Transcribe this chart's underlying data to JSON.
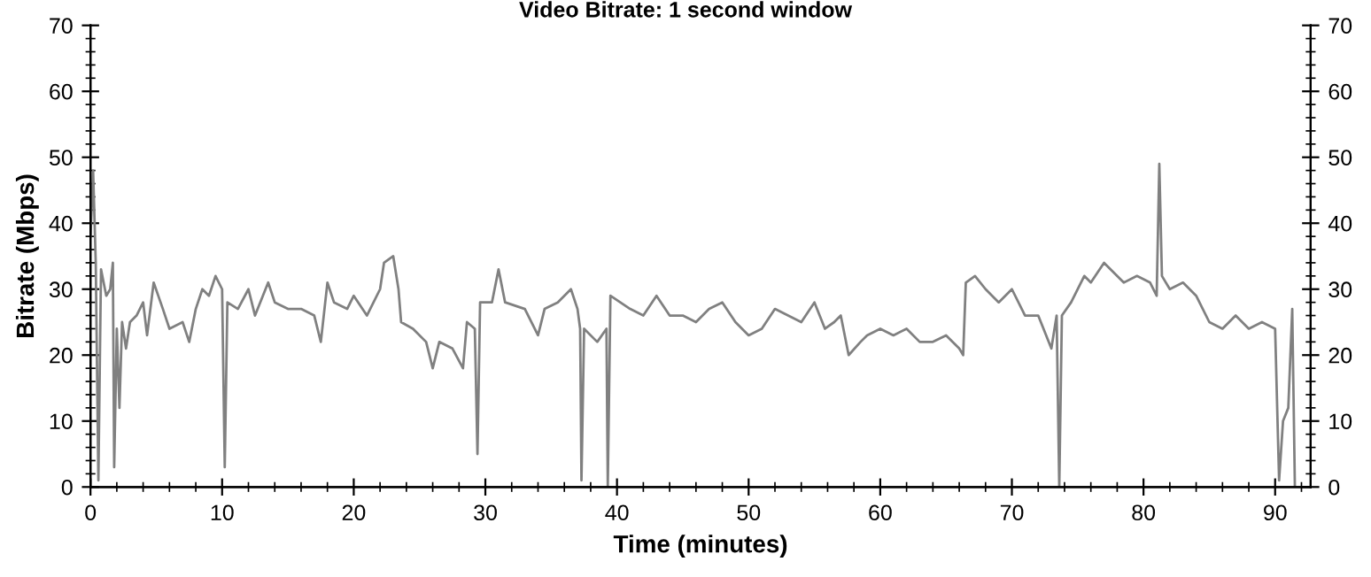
{
  "chart_data": {
    "type": "line",
    "title": "Video Bitrate: 1 second window",
    "xlabel": "Time (minutes)",
    "ylabel": "Bitrate (Mbps)",
    "xlim": [
      0,
      92.7
    ],
    "xticks": [
      0,
      10,
      20,
      30,
      40,
      50,
      60,
      70,
      80,
      90
    ],
    "ylim": [
      0,
      70
    ],
    "yticks": [
      0,
      10,
      20,
      30,
      40,
      50,
      60,
      70
    ],
    "y2lim": [
      0,
      70
    ],
    "y2ticks": [
      0,
      10,
      20,
      30,
      40,
      50,
      60,
      70
    ],
    "grid": false,
    "marker": "none",
    "line_style": "solid",
    "series": [
      {
        "color": "#808080",
        "x": [
          0,
          0.2,
          0.4,
          0.6,
          0.8,
          1.2,
          1.5,
          1.7,
          1.8,
          2.0,
          2.2,
          2.4,
          2.7,
          3.0,
          3.5,
          4.0,
          4.3,
          4.8,
          5.5,
          6.0,
          7.0,
          7.5,
          8.0,
          8.5,
          9.0,
          9.5,
          10.0,
          10.2,
          10.4,
          11.2,
          12,
          12.5,
          13.5,
          14,
          15,
          16,
          17,
          17.5,
          18,
          18.5,
          19.5,
          20,
          21,
          22,
          22.3,
          23,
          23.4,
          23.6,
          24.5,
          25.5,
          26,
          26.5,
          27.5,
          28.3,
          28.6,
          29.2,
          29.4,
          29.6,
          30.5,
          31,
          31.5,
          33,
          34,
          34.5,
          35.5,
          36.5,
          37,
          37.2,
          37.3,
          37.5,
          38.5,
          39.2,
          39.3,
          39.5,
          41,
          42,
          43,
          44,
          45,
          46,
          47,
          48,
          49,
          50,
          51,
          52,
          53,
          54,
          55,
          55.8,
          56.5,
          57,
          57.6,
          58.5,
          59,
          60,
          61,
          62,
          63,
          64,
          65,
          66,
          66.3,
          66.5,
          67.2,
          68,
          69,
          70,
          71,
          72,
          73,
          73.4,
          73.6,
          73.8,
          74.5,
          75.5,
          76,
          77,
          78.5,
          79.5,
          80.5,
          81,
          81.2,
          81.4,
          82,
          83,
          84,
          85,
          86,
          87,
          88,
          89,
          90,
          90.3,
          90.6,
          91,
          91.3,
          91.5
        ],
        "values": [
          38,
          48,
          34,
          1,
          33,
          29,
          30,
          34,
          3,
          24,
          12,
          25,
          21,
          25,
          26,
          28,
          23,
          31,
          27,
          24,
          25,
          22,
          27,
          30,
          29,
          32,
          30,
          3,
          28,
          27,
          30,
          26,
          31,
          28,
          27,
          27,
          26,
          22,
          31,
          28,
          27,
          29,
          26,
          30,
          34,
          35,
          30,
          25,
          24,
          22,
          18,
          22,
          21,
          18,
          25,
          24,
          5,
          28,
          28,
          33,
          28,
          27,
          23,
          27,
          28,
          30,
          27,
          24,
          1,
          24,
          22,
          24,
          0,
          29,
          27,
          26,
          29,
          26,
          26,
          25,
          27,
          28,
          25,
          23,
          24,
          27,
          26,
          25,
          28,
          24,
          25,
          26,
          20,
          22,
          23,
          24,
          23,
          24,
          22,
          22,
          23,
          21,
          20,
          31,
          32,
          30,
          28,
          30,
          26,
          26,
          21,
          26,
          0,
          26,
          28,
          32,
          31,
          34,
          31,
          32,
          31,
          29,
          49,
          32,
          30,
          31,
          29,
          25,
          24,
          26,
          24,
          25,
          24,
          1,
          10,
          12,
          27,
          0
        ]
      }
    ]
  }
}
